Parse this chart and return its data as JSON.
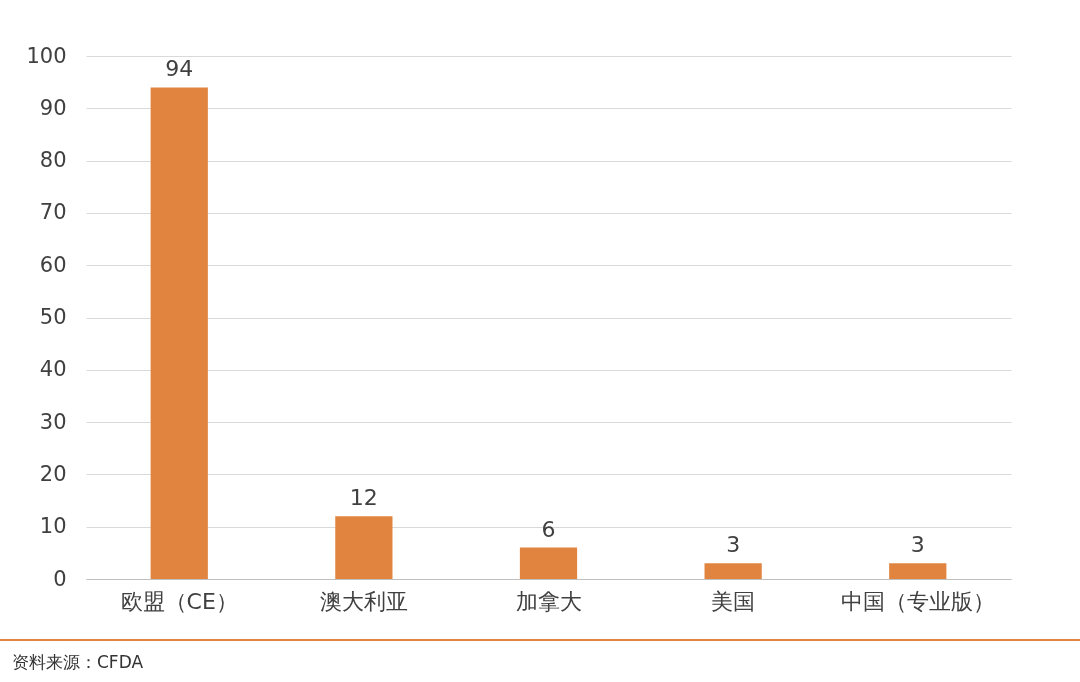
{
  "chart_data": {
    "type": "bar",
    "categories": [
      "欧盟（CE）",
      "澳大利亚",
      "加拿大",
      "美国",
      "中国（专业版）"
    ],
    "values": [
      94,
      12,
      6,
      3,
      3
    ],
    "color": "#e0843f",
    "ylim": [
      0,
      100
    ],
    "yticks": [
      0,
      10,
      20,
      30,
      40,
      50,
      60,
      70,
      80,
      90,
      100
    ],
    "grid": "y",
    "data_labels": true,
    "annotations": [
      "资料来源：CFDA"
    ]
  }
}
